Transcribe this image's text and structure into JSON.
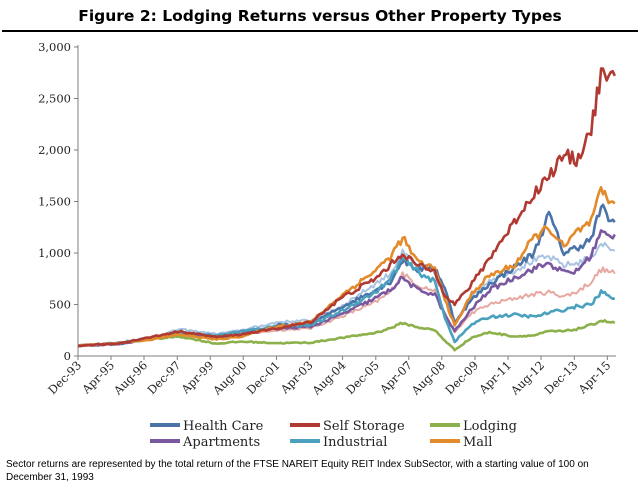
{
  "figure_title": "Figure 2: Lodging Returns versus Other Property Types",
  "footnote": "Sector returns are represented by the total return of the FTSE NAREIT Equity REIT Index SubSector, with a starting value of 100 on December 31, 1993",
  "chart_data": {
    "type": "line",
    "title": "Figure 2: Lodging Returns versus Other Property Types",
    "xlabel": "",
    "ylabel": "",
    "ylim": [
      0,
      3000
    ],
    "yticks": [
      0,
      500,
      1000,
      1500,
      2000,
      2500,
      3000
    ],
    "ytick_labels": [
      "0",
      "500",
      "1,000",
      "1,500",
      "2,000",
      "2,500",
      "3,000"
    ],
    "xlim": [
      1993.92,
      2015.6
    ],
    "xticks": [
      {
        "label": "Dec-93",
        "t": 1993.92
      },
      {
        "label": "Apr-95",
        "t": 1995.25
      },
      {
        "label": "Aug-96",
        "t": 1996.58
      },
      {
        "label": "Dec-97",
        "t": 1997.92
      },
      {
        "label": "Apr-99",
        "t": 1999.25
      },
      {
        "label": "Aug-00",
        "t": 2000.58
      },
      {
        "label": "Dec-01",
        "t": 2001.92
      },
      {
        "label": "Apr-03",
        "t": 2003.25
      },
      {
        "label": "Aug-04",
        "t": 2004.58
      },
      {
        "label": "Dec-05",
        "t": 2005.92
      },
      {
        "label": "Apr-07",
        "t": 2007.25
      },
      {
        "label": "Aug-08",
        "t": 2008.58
      },
      {
        "label": "Dec-09",
        "t": 2009.92
      },
      {
        "label": "Apr-11",
        "t": 2011.25
      },
      {
        "label": "Aug-12",
        "t": 2012.58
      },
      {
        "label": "Dec-13",
        "t": 2013.92
      },
      {
        "label": "Apr-15",
        "t": 2015.25
      }
    ],
    "grid": false,
    "legend_position": "bottom",
    "series": [
      {
        "name": "Health Care",
        "color": "#4a74a8",
        "x": [
          1993.92,
          1995.5,
          1997.0,
          1998.0,
          1999.5,
          2000.5,
          2002.0,
          2003.3,
          2004.5,
          2005.9,
          2006.5,
          2007.0,
          2007.6,
          2008.3,
          2008.7,
          2009.1,
          2009.8,
          2010.5,
          2011.5,
          2012.3,
          2012.9,
          2013.5,
          2014.0,
          2014.6,
          2015.0,
          2015.3,
          2015.55
        ],
        "y": [
          100,
          115,
          170,
          230,
          175,
          205,
          300,
          310,
          470,
          640,
          720,
          930,
          840,
          860,
          660,
          330,
          550,
          700,
          860,
          1000,
          1380,
          1000,
          1050,
          1130,
          1450,
          1340,
          1300
        ]
      },
      {
        "name": "Self Storage",
        "color": "#b03a32",
        "x": [
          1993.92,
          1995.5,
          1997.0,
          1998.0,
          1999.5,
          2000.5,
          2002.0,
          2003.3,
          2004.5,
          2005.9,
          2006.5,
          2007.0,
          2007.6,
          2008.3,
          2008.7,
          2009.1,
          2009.8,
          2010.5,
          2011.5,
          2012.3,
          2012.9,
          2013.5,
          2014.0,
          2014.6,
          2015.0,
          2015.3,
          2015.55
        ],
        "y": [
          100,
          120,
          190,
          240,
          185,
          210,
          270,
          330,
          560,
          750,
          880,
          1000,
          880,
          820,
          600,
          500,
          700,
          950,
          1300,
          1580,
          1750,
          1950,
          1900,
          2200,
          2750,
          2650,
          2720
        ]
      },
      {
        "name": "Lodging",
        "color": "#8db14a",
        "x": [
          1993.92,
          1995.5,
          1997.0,
          1998.0,
          1999.5,
          2000.5,
          2002.0,
          2003.3,
          2004.5,
          2005.9,
          2006.5,
          2007.0,
          2007.6,
          2008.3,
          2008.7,
          2009.1,
          2009.8,
          2010.5,
          2011.5,
          2012.3,
          2012.9,
          2013.5,
          2014.0,
          2014.6,
          2015.0,
          2015.3,
          2015.55
        ],
        "y": [
          100,
          120,
          165,
          190,
          120,
          140,
          125,
          130,
          175,
          225,
          270,
          320,
          280,
          250,
          150,
          60,
          180,
          230,
          190,
          200,
          240,
          240,
          260,
          300,
          345,
          330,
          320
        ]
      },
      {
        "name": "Apartments",
        "color": "#7a58a0",
        "x": [
          1993.92,
          1995.5,
          1997.0,
          1998.0,
          1999.5,
          2000.5,
          2002.0,
          2003.3,
          2004.5,
          2005.9,
          2006.5,
          2007.0,
          2007.6,
          2008.3,
          2008.7,
          2009.1,
          2009.8,
          2010.5,
          2011.5,
          2012.3,
          2012.9,
          2013.5,
          2014.0,
          2014.6,
          2015.0,
          2015.3,
          2015.55
        ],
        "y": [
          100,
          115,
          175,
          215,
          185,
          240,
          265,
          285,
          400,
          560,
          640,
          760,
          640,
          600,
          400,
          240,
          460,
          640,
          760,
          850,
          900,
          810,
          820,
          980,
          1200,
          1160,
          1180
        ]
      },
      {
        "name": "Industrial",
        "color": "#4aa0bd",
        "x": [
          1993.92,
          1995.5,
          1997.0,
          1998.0,
          1999.5,
          2000.5,
          2002.0,
          2003.3,
          2004.5,
          2005.9,
          2006.5,
          2007.0,
          2007.6,
          2008.3,
          2008.7,
          2009.1,
          2009.8,
          2010.5,
          2011.5,
          2012.3,
          2012.9,
          2013.5,
          2014.0,
          2014.6,
          2015.0,
          2015.3,
          2015.55
        ],
        "y": [
          100,
          125,
          185,
          230,
          200,
          240,
          290,
          300,
          430,
          620,
          740,
          950,
          820,
          720,
          380,
          140,
          310,
          380,
          400,
          380,
          420,
          450,
          480,
          500,
          620,
          590,
          560
        ]
      },
      {
        "name": "Mall",
        "color": "#e38a2b",
        "x": [
          1993.92,
          1995.5,
          1997.0,
          1998.0,
          1999.5,
          2000.5,
          2002.0,
          2003.3,
          2004.5,
          2005.9,
          2006.5,
          2007.0,
          2007.6,
          2008.3,
          2008.7,
          2009.1,
          2009.8,
          2010.5,
          2011.5,
          2012.3,
          2012.9,
          2013.5,
          2014.0,
          2014.6,
          2015.0,
          2015.3,
          2015.55
        ],
        "y": [
          100,
          125,
          165,
          210,
          160,
          190,
          290,
          330,
          580,
          830,
          960,
          1150,
          910,
          850,
          560,
          290,
          610,
          780,
          880,
          1150,
          1250,
          1050,
          1200,
          1300,
          1600,
          1500,
          1480
        ]
      },
      {
        "name": "",
        "color": "#e8a8a2",
        "legend": false,
        "x": [
          1993.92,
          1995.5,
          1997.0,
          1998.0,
          1999.5,
          2000.5,
          2002.0,
          2003.3,
          2004.5,
          2005.9,
          2006.5,
          2007.0,
          2007.6,
          2008.3,
          2008.7,
          2009.1,
          2009.8,
          2010.5,
          2011.5,
          2012.3,
          2012.9,
          2013.5,
          2014.0,
          2014.6,
          2015.0,
          2015.3,
          2015.55
        ],
        "y": [
          100,
          120,
          170,
          200,
          170,
          210,
          250,
          270,
          380,
          520,
          620,
          800,
          690,
          630,
          390,
          230,
          420,
          500,
          560,
          600,
          620,
          580,
          620,
          720,
          840,
          820,
          800
        ]
      },
      {
        "name": "",
        "color": "#a9c4e2",
        "legend": false,
        "x": [
          1993.92,
          1995.5,
          1997.0,
          1998.0,
          1999.5,
          2000.5,
          2002.0,
          2003.3,
          2004.5,
          2005.9,
          2006.5,
          2007.0,
          2007.6,
          2008.3,
          2008.7,
          2009.1,
          2009.8,
          2010.5,
          2011.5,
          2012.3,
          2012.9,
          2013.5,
          2014.0,
          2014.6,
          2015.0,
          2015.3,
          2015.55
        ],
        "y": [
          100,
          125,
          185,
          260,
          215,
          250,
          330,
          345,
          480,
          700,
          800,
          1000,
          870,
          800,
          560,
          330,
          580,
          740,
          830,
          930,
          960,
          880,
          900,
          960,
          1100,
          1050,
          1020
        ]
      }
    ]
  }
}
